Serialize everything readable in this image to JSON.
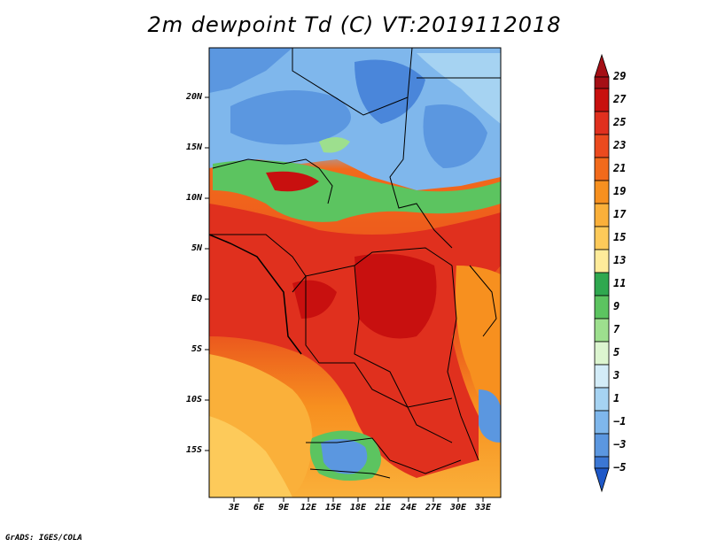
{
  "title": "2m dewpoint Td (C) VT:2019112018",
  "credit": "GrADS: IGES/COLA",
  "map": {
    "lat_labels": [
      "20N",
      "15N",
      "10N",
      "5N",
      "EQ",
      "5S",
      "10S",
      "15S"
    ],
    "lon_labels": [
      "3E",
      "6E",
      "9E",
      "12E",
      "15E",
      "18E",
      "21E",
      "24E",
      "27E",
      "30E",
      "33E"
    ],
    "region": "Central Africa"
  },
  "colorbar": {
    "labels": [
      "29",
      "27",
      "25",
      "23",
      "21",
      "19",
      "17",
      "15",
      "13",
      "11",
      "9",
      "7",
      "5",
      "3",
      "1",
      "−1",
      "−3",
      "−5"
    ],
    "colors": [
      "#a50f15",
      "#c8100f",
      "#e0301e",
      "#eb4a1e",
      "#f26a1b",
      "#f7901f",
      "#fab03a",
      "#fdca5a",
      "#feeb9a",
      "#fff5c0",
      "#2fa84f",
      "#5cc460",
      "#9ddf8e",
      "#dcf5d0",
      "#d3ecf8",
      "#a6d3f2",
      "#7fb7ec",
      "#5b97e0",
      "#3b77d4",
      "#1e58c8"
    ]
  }
}
